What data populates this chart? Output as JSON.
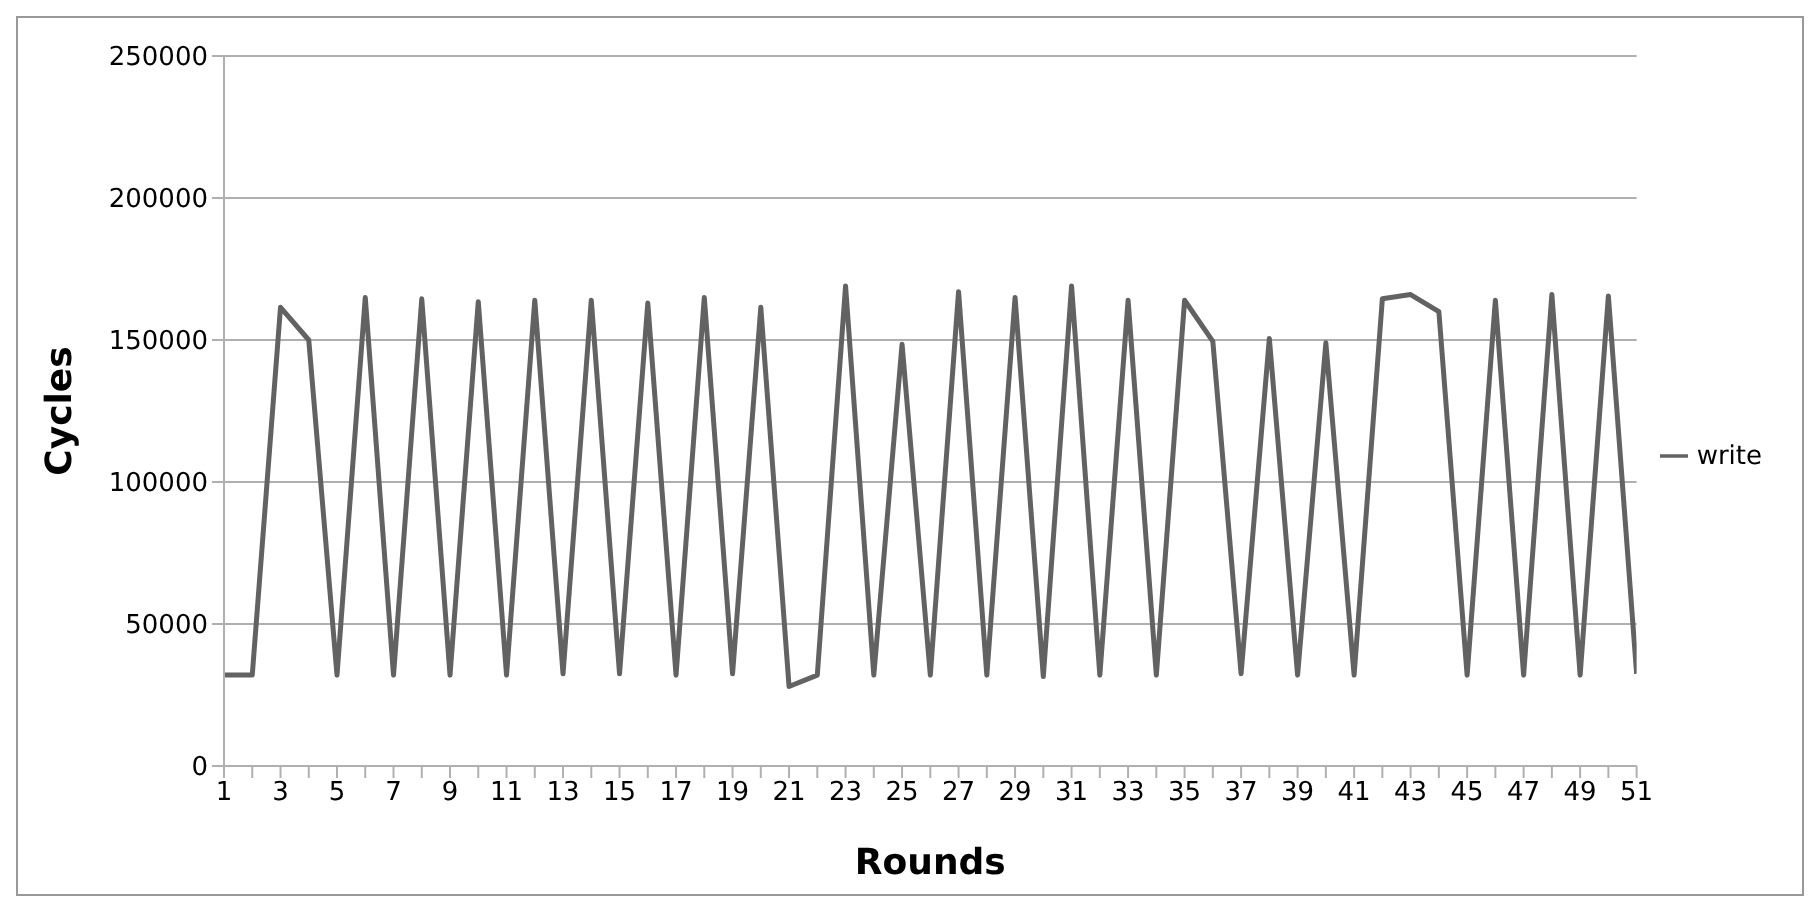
{
  "chart_data": {
    "type": "line",
    "xlabel": "Rounds",
    "ylabel": "Cycles",
    "x": [
      1,
      2,
      3,
      4,
      5,
      6,
      7,
      8,
      9,
      10,
      11,
      12,
      13,
      14,
      15,
      16,
      17,
      18,
      19,
      20,
      21,
      22,
      23,
      24,
      25,
      26,
      27,
      28,
      29,
      30,
      31,
      32,
      33,
      34,
      35,
      36,
      37,
      38,
      39,
      40,
      41,
      42,
      43,
      44,
      45,
      46,
      47,
      48,
      49,
      50,
      51
    ],
    "xlim": [
      1,
      51
    ],
    "xticks": [
      1,
      {
        "value": 2,
        "label": null
      },
      3,
      {
        "value": 4,
        "label": null
      },
      5,
      {
        "value": 6,
        "label": null
      },
      7,
      {
        "value": 8,
        "label": null
      },
      9,
      {
        "value": 10,
        "label": null
      },
      11,
      {
        "value": 12,
        "label": null
      },
      13,
      {
        "value": 14,
        "label": null
      },
      15,
      {
        "value": 16,
        "label": null
      },
      17,
      {
        "value": 18,
        "label": null
      },
      19,
      {
        "value": 20,
        "label": null
      },
      21,
      {
        "value": 22,
        "label": null
      },
      23,
      {
        "value": 24,
        "label": null
      },
      25,
      {
        "value": 26,
        "label": null
      },
      27,
      {
        "value": 28,
        "label": null
      },
      29,
      {
        "value": 30,
        "label": null
      },
      31,
      {
        "value": 32,
        "label": null
      },
      33,
      {
        "value": 34,
        "label": null
      },
      35,
      {
        "value": 36,
        "label": null
      },
      37,
      {
        "value": 38,
        "label": null
      },
      39,
      {
        "value": 40,
        "label": null
      },
      41,
      {
        "value": 42,
        "label": null
      },
      43,
      {
        "value": 44,
        "label": null
      },
      45,
      {
        "value": 46,
        "label": null
      },
      47,
      {
        "value": 48,
        "label": null
      },
      49,
      {
        "value": 50,
        "label": null
      },
      51
    ],
    "series": [
      {
        "name": "write",
        "color": "#626262",
        "values": [
          32000,
          32000,
          161500,
          150000,
          32000,
          165000,
          32000,
          164500,
          32000,
          163500,
          32000,
          164000,
          32500,
          164000,
          32500,
          163000,
          32000,
          165000,
          32500,
          161500,
          28000,
          32000,
          169000,
          32000,
          148500,
          32000,
          167000,
          32000,
          165000,
          31500,
          169000,
          32000,
          164000,
          32000,
          164000,
          149500,
          32500,
          150500,
          32000,
          149000,
          32000,
          164500,
          166000,
          160000,
          32000,
          164000,
          32000,
          166000,
          32000,
          165500,
          32500
        ]
      }
    ],
    "ylim": [
      0,
      250000
    ],
    "yticks": [
      0,
      50000,
      100000,
      150000,
      200000,
      250000
    ],
    "grid": "y",
    "legend": "right",
    "marker": "none",
    "line_style": "solid"
  }
}
